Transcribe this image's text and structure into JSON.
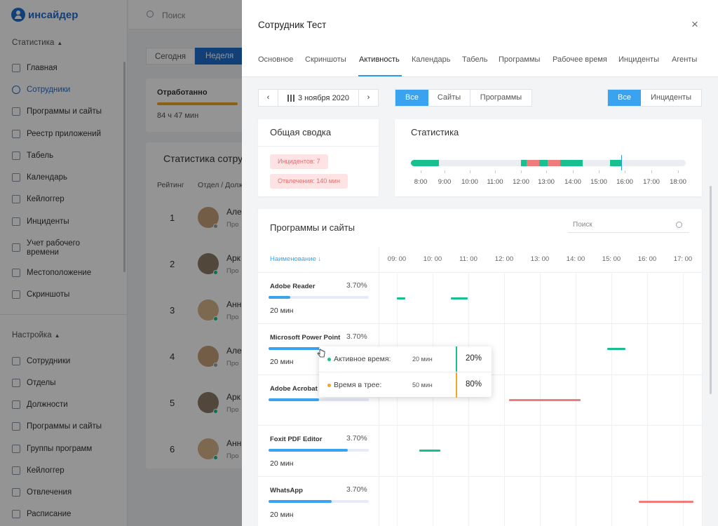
{
  "app": {
    "brand": "инсайдер",
    "search_placeholder": "Поиск",
    "sidebar": {
      "section_stats": "Статистика",
      "section_settings": "Настройка",
      "stats_items": [
        "Главная",
        "Сотрудники",
        "Программы и сайты",
        "Реестр приложений",
        "Табель",
        "Календарь",
        "Кейлоггер",
        "Инциденты",
        "Учет рабочего времени",
        "Местоположение",
        "Скриншоты"
      ],
      "settings_items": [
        "Сотрудники",
        "Отделы",
        "Должности",
        "Программы и сайты",
        "Группы программ",
        "Кейлоггер",
        "Отвлечения",
        "Расписание"
      ],
      "active_item": "Сотрудники"
    },
    "periods": {
      "today": "Сегодня",
      "week": "Неделя"
    },
    "worked": {
      "title": "Отработанно",
      "value": "84 ч 47 мин"
    },
    "stats_table": {
      "title": "Статистика сотру",
      "col_rank": "Рейтинг",
      "col_dept": "Отдел / Долж",
      "rows": [
        {
          "rank": "1",
          "name": "Але",
          "sub": "Про"
        },
        {
          "rank": "2",
          "name": "Арк",
          "sub": "Про"
        },
        {
          "rank": "3",
          "name": "Анн",
          "sub": "Про"
        },
        {
          "rank": "4",
          "name": "Але",
          "sub": "Про"
        },
        {
          "rank": "5",
          "name": "Арк",
          "sub": "Про"
        },
        {
          "rank": "6",
          "name": "Анн",
          "sub": "Про"
        }
      ]
    }
  },
  "panel": {
    "title": "Сотрудник Тест",
    "close_glyph": "×",
    "tabs": [
      "Основное",
      "Скриншоты",
      "Активность",
      "Календарь",
      "Табель",
      "Программы",
      "Рабочее время",
      "Инциденты",
      "Агенты"
    ],
    "active_tab": "Активность",
    "date": {
      "prev": "‹",
      "next": "›",
      "label": "3 ноября 2020"
    },
    "filter_type": {
      "all": "Все",
      "sites": "Сайты",
      "programs": "Программы",
      "selected": "Все"
    },
    "filter_incidents": {
      "all": "Все",
      "incidents": "Инциденты",
      "selected": "Все"
    },
    "summary": {
      "title": "Общая сводка",
      "incidents": "Инцидентов: 7",
      "distractions": "Отвлечения: 140 мин"
    },
    "statistics": {
      "title": "Статистика",
      "hours": [
        "8:00",
        "9:00",
        "10:00",
        "11:00",
        "12:00",
        "13:00",
        "14:00",
        "15:00",
        "16:00",
        "17:00",
        "18:00"
      ]
    },
    "programs": {
      "title": "Программы и сайты",
      "search_placeholder": "Поиск",
      "sort_label": "Наименование ↓",
      "hours": [
        "09: 00",
        "10: 00",
        "11: 00",
        "12: 00",
        "13: 00",
        "14: 00",
        "15: 00",
        "16: 00",
        "17: 00"
      ],
      "rows": [
        {
          "name": "Adobe Reader",
          "pct": "3.70%",
          "time": "20 мин",
          "fill": 0.22
        },
        {
          "name": "Microsoft Power Point",
          "pct": "3.70%",
          "time": "20 мин",
          "fill": 0.55
        },
        {
          "name": "Adobe Acrobat",
          "pct": "",
          "time": "",
          "fill": 0.5
        },
        {
          "name": "Foxit PDF Editor",
          "pct": "3.70%",
          "time": "20 мин",
          "fill": 0.79
        },
        {
          "name": "WhatsApp",
          "pct": "3.70%",
          "time": "20 мин",
          "fill": 0.63
        }
      ]
    },
    "tooltip": {
      "active_label": "Активное время:",
      "active_min": "20 мин",
      "active_pct": "20%",
      "tray_label": "Время в трее:",
      "tray_min": "50 мин",
      "tray_pct": "80%"
    }
  },
  "colors": {
    "accent": "#3aa3ef",
    "brand": "#1e6fd0",
    "active": "#18c08f",
    "incident": "#f07b7b",
    "tray": "#f5a623"
  }
}
